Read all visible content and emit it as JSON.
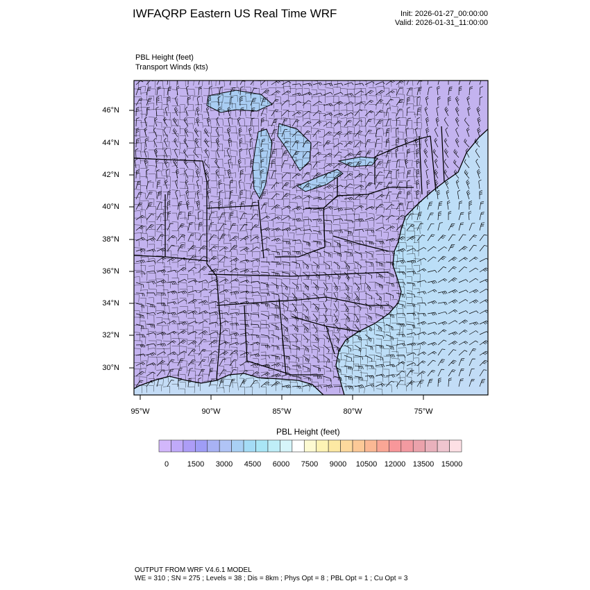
{
  "header": {
    "title": "IWFAQRP Eastern US Real Time WRF",
    "init": "Init: 2026-01-27_00:00:00",
    "valid": "Valid: 2026-01-31_11:00:00"
  },
  "fields": {
    "primary": "PBL Height   (feet)",
    "secondary": "Transport Winds   (kts)"
  },
  "map": {
    "lat_labels": [
      "46°N",
      "44°N",
      "42°N",
      "40°N",
      "38°N",
      "36°N",
      "34°N",
      "32°N",
      "30°N"
    ],
    "lon_labels": [
      "95°W",
      "90°W",
      "85°W",
      "80°W",
      "75°W"
    ],
    "colors": {
      "land": "#c3b3ef",
      "ocean_far": "#c4dcf6",
      "ocean_near": "#b4e0f8",
      "outline": "#000000"
    }
  },
  "colorbar": {
    "title": "PBL Height  (feet)",
    "labels": [
      "0",
      "1500",
      "3000",
      "4500",
      "6000",
      "7500",
      "9000",
      "10500",
      "12000",
      "13500",
      "15000"
    ],
    "colors": [
      "#d2b7fb",
      "#c0aaf9",
      "#ad9df7",
      "#9f9df6",
      "#a8b2f4",
      "#b0c4f6",
      "#a9d0f5",
      "#a4dcf6",
      "#a9e6f6",
      "#bfeef8",
      "#d6f5fa",
      "#ffffff",
      "#fdfad2",
      "#fdf3b4",
      "#fde9a3",
      "#fdd99d",
      "#fcc997",
      "#fbb894",
      "#faa695",
      "#f8979a",
      "#f39aa1",
      "#eba2ab",
      "#e9b1bc",
      "#efc5cf",
      "#fde0e5"
    ]
  },
  "footer": {
    "line1": "OUTPUT FROM WRF V4.6.1 MODEL",
    "line2": "WE = 310 ; SN = 275 ; Levels = 38 ; Dis = 8km ; Phys Opt = 8 ; PBL Opt = 1 ; Cu Opt = 3"
  }
}
